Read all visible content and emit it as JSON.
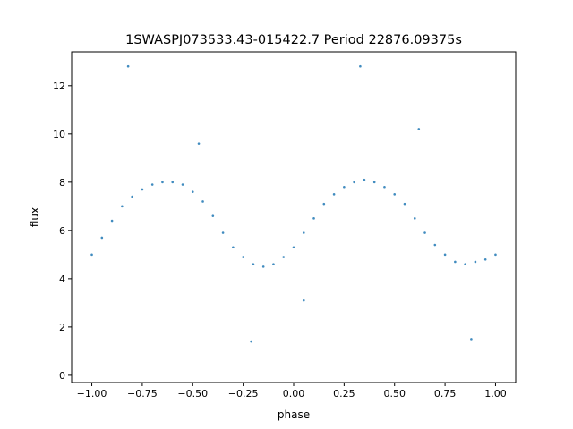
{
  "chart_data": {
    "type": "scatter",
    "title": "1SWASPJ073533.43-015422.7 Period 22876.09375s",
    "xlabel": "phase",
    "ylabel": "flux",
    "xlim": [
      -1.1,
      1.1
    ],
    "ylim": [
      -0.3,
      13.4
    ],
    "xticks": [
      -1.0,
      -0.75,
      -0.5,
      -0.25,
      0.0,
      0.25,
      0.5,
      0.75,
      1.0
    ],
    "xtick_labels": [
      "−1.00",
      "−0.75",
      "−0.50",
      "−0.25",
      "0.00",
      "0.25",
      "0.50",
      "0.75",
      "1.00"
    ],
    "yticks": [
      0,
      2,
      4,
      6,
      8,
      10,
      12
    ],
    "ytick_labels": [
      "0",
      "2",
      "4",
      "6",
      "8",
      "10",
      "12"
    ],
    "grid": false,
    "series": [
      {
        "color": "#1f77b4",
        "x": [
          -1.0,
          -0.95,
          -0.9,
          -0.85,
          -0.8,
          -0.75,
          -0.7,
          -0.65,
          -0.6,
          -0.55,
          -0.5,
          -0.45,
          -0.4,
          -0.35,
          -0.3,
          -0.25,
          -0.2,
          -0.15,
          -0.1,
          -0.05,
          0.0,
          0.05,
          0.1,
          0.15,
          0.2,
          0.25,
          0.3,
          0.35,
          0.4,
          0.45,
          0.5,
          0.55,
          0.6,
          0.65,
          0.7,
          0.75,
          0.8,
          0.85,
          0.9,
          0.95,
          1.0,
          -0.82,
          -0.47,
          -0.21,
          0.05,
          0.33,
          0.62,
          0.88
        ],
        "y": [
          5.0,
          5.7,
          6.4,
          7.0,
          7.4,
          7.7,
          7.9,
          8.0,
          8.0,
          7.9,
          7.6,
          7.2,
          6.6,
          5.9,
          5.3,
          4.9,
          4.6,
          4.5,
          4.6,
          4.9,
          5.3,
          5.9,
          6.5,
          7.1,
          7.5,
          7.8,
          8.0,
          8.1,
          8.0,
          7.8,
          7.5,
          7.1,
          6.5,
          5.9,
          5.4,
          5.0,
          4.7,
          4.6,
          4.7,
          4.8,
          5.0,
          12.8,
          9.6,
          1.4,
          3.1,
          12.8,
          10.2,
          1.5
        ]
      }
    ]
  }
}
